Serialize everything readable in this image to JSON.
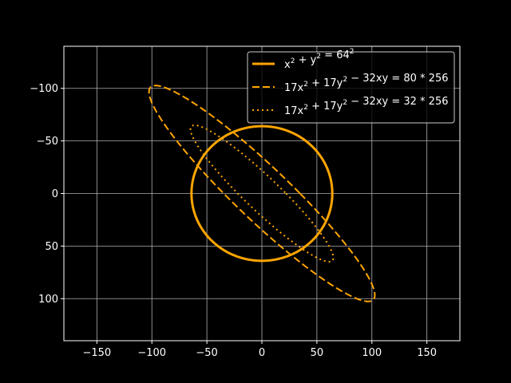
{
  "colors": {
    "background": "#000000",
    "series": "#FFA500",
    "grid": "#b0b0b0",
    "axes": "#ffffff"
  },
  "chart_data": {
    "type": "line",
    "title": "",
    "xlabel": "",
    "ylabel": "",
    "xlim": [
      -180,
      180
    ],
    "ylim": [
      140,
      -140
    ],
    "y_inverted": true,
    "grid": true,
    "legend_position": "top-right",
    "x_ticks": [
      -150,
      -100,
      -50,
      0,
      50,
      100,
      150
    ],
    "y_ticks": [
      -100,
      -50,
      0,
      50,
      100
    ],
    "x_tick_labels": [
      "−150",
      "−100",
      "−50",
      "0",
      "50",
      "100",
      "150"
    ],
    "y_tick_labels": [
      "−100",
      "−50",
      "0",
      "50",
      "100"
    ],
    "series": [
      {
        "name": "x^2 + y^2 = 64^2",
        "legend": {
          "base": "x",
          "pre": "",
          "parts": [
            [
              "x",
              "2"
            ],
            [
              " + y",
              "2"
            ],
            [
              " = 64",
              "2"
            ]
          ]
        },
        "equation": {
          "a": 1,
          "b": 1,
          "c": 0,
          "rhs": 4096
        },
        "style": "solid"
      },
      {
        "name": "17x^2 + 17y^2 − 32xy = 80 * 256",
        "legend": {
          "parts": [
            [
              "17x",
              "2"
            ],
            [
              " + 17y",
              "2"
            ],
            [
              " − 32xy = 80 * 256",
              ""
            ]
          ]
        },
        "equation": {
          "a": 17,
          "b": 17,
          "c": -32,
          "rhs": 20480
        },
        "style": "dashed"
      },
      {
        "name": "17x^2 + 17y^2 − 32xy = 32 * 256",
        "legend": {
          "parts": [
            [
              "17x",
              "2"
            ],
            [
              " + 17y",
              "2"
            ],
            [
              " − 32xy = 32 * 256",
              ""
            ]
          ]
        },
        "equation": {
          "a": 17,
          "b": 17,
          "c": -32,
          "rhs": 8192
        },
        "style": "dotted"
      }
    ]
  }
}
